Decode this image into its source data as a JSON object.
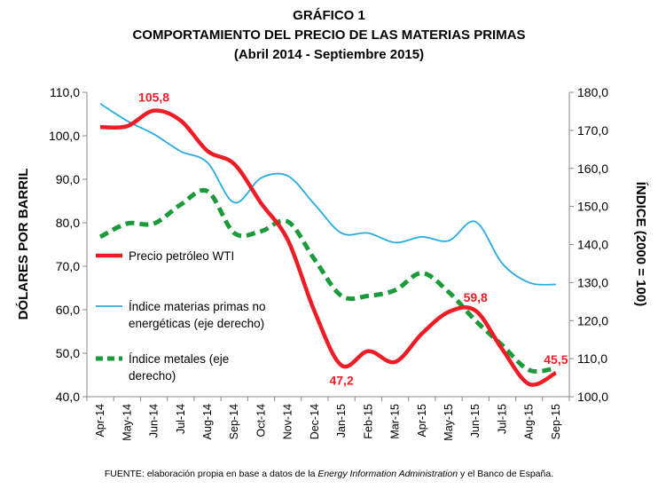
{
  "title": {
    "line1": "GRÁFICO 1",
    "line2": "COMPORTAMIENTO DEL PRECIO DE LAS MATERIAS PRIMAS",
    "line3": "(Abril 2014 - Septiembre 2015)"
  },
  "source": {
    "before": "FUENTE: elaboración propia en base a datos de la ",
    "italic": "Energy Information Administration",
    "after": " y el Banco de España."
  },
  "chart_data": {
    "type": "line",
    "categories": [
      "Apr-14",
      "May-14",
      "Jun-14",
      "Jul-14",
      "Aug-14",
      "Sep-14",
      "Oct-14",
      "Nov-14",
      "Dec-14",
      "Jan-15",
      "Feb-15",
      "Mar-15",
      "Apr-15",
      "May-15",
      "Jun-15",
      "Jul-15",
      "Aug-15",
      "Sep-15"
    ],
    "ylabel": "DÓLARES POR BARRIL",
    "y2label": "ÍNDICE (2000 = 100)",
    "ylim": [
      40,
      110
    ],
    "y2lim": [
      100,
      180
    ],
    "yticks": [
      "40,0",
      "50,0",
      "60,0",
      "70,0",
      "80,0",
      "90,0",
      "100,0",
      "110,0"
    ],
    "y2ticks": [
      "100,0",
      "110,0",
      "120,0",
      "130,0",
      "140,0",
      "150,0",
      "160,0",
      "170,0",
      "180,0"
    ],
    "series": [
      {
        "name": "Precio petróleo WTI",
        "axis": "left",
        "color": "#ee1c25",
        "style": "solid-thick",
        "values": [
          102.0,
          102.2,
          105.8,
          103.5,
          96.5,
          93.5,
          84.5,
          76.0,
          59.5,
          47.2,
          50.5,
          48.0,
          54.5,
          59.5,
          59.8,
          50.9,
          42.9,
          45.5
        ]
      },
      {
        "name": "Índice materias primas no energéticas (eje derecho)",
        "axis": "right",
        "color": "#29abe2",
        "style": "solid-thin",
        "values": [
          177.0,
          172.5,
          169.0,
          164.5,
          161.5,
          151.0,
          157.5,
          158.0,
          150.5,
          143.0,
          143.0,
          140.5,
          142.0,
          141.0,
          146.0,
          135.0,
          130.0,
          129.5
        ]
      },
      {
        "name": "Índice metales (eje derecho)",
        "axis": "right",
        "color": "#1a9a3a",
        "style": "dashed-thick",
        "values": [
          142.0,
          145.5,
          145.5,
          150.5,
          154.0,
          143.0,
          143.5,
          146.0,
          136.0,
          126.5,
          126.5,
          128.0,
          132.5,
          127.5,
          120.0,
          113.5,
          107.0,
          107.5
        ]
      }
    ],
    "annotations": [
      {
        "series": 0,
        "index": 2,
        "text": "105,8",
        "pos": "above"
      },
      {
        "series": 0,
        "index": 9,
        "text": "47,2",
        "pos": "below"
      },
      {
        "series": 0,
        "index": 14,
        "text": "59,8",
        "pos": "above"
      },
      {
        "series": 0,
        "index": 17,
        "text": "45,5",
        "pos": "above"
      }
    ],
    "legend": [
      {
        "series": 0,
        "lines": [
          "Precio petróleo WTI"
        ]
      },
      {
        "series": 1,
        "lines": [
          "Índice materias primas no",
          "energéticas (eje derecho)"
        ]
      },
      {
        "series": 2,
        "lines": [
          "Índice metales (eje",
          "derecho)"
        ]
      }
    ],
    "grid": false,
    "legend_position": "left-middle"
  }
}
